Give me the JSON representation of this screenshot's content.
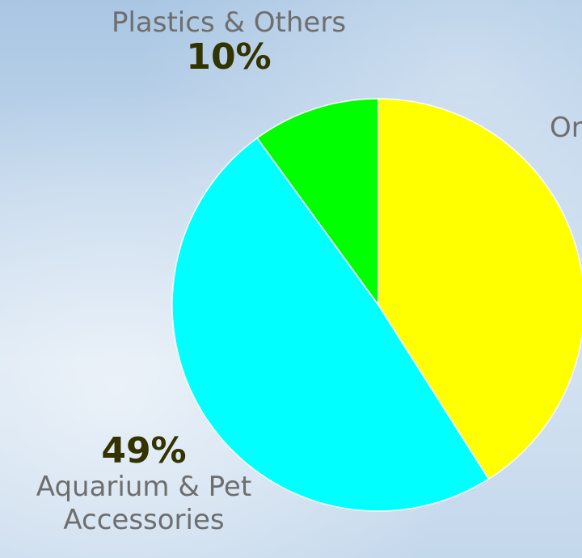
{
  "chart_data": {
    "type": "pie",
    "slices": [
      {
        "label": "Or",
        "percent_text": "",
        "value": 41,
        "color": "#ffff00"
      },
      {
        "label": "Aquarium & Pet Accessories",
        "percent_text": "49%",
        "value": 49,
        "color": "#00ffff"
      },
      {
        "label": "Plastics & Others",
        "percent_text": "10%",
        "value": 10,
        "color": "#00ff00"
      }
    ],
    "start_angle_deg": 0,
    "direction": "clockwise"
  }
}
